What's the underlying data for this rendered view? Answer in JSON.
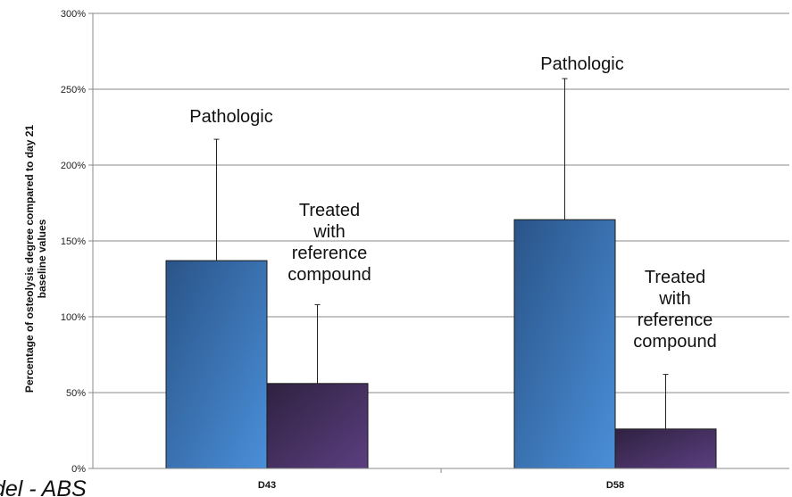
{
  "chart_data": {
    "type": "bar",
    "categories": [
      "D43",
      "D58"
    ],
    "series": [
      {
        "values": [
          137,
          164
        ],
        "errors": [
          80,
          93
        ]
      },
      {
        "values": [
          56,
          26
        ],
        "errors": [
          52,
          36
        ]
      }
    ],
    "ylabel": "Percentage of osteolysis degree compared to day 21 baseline values",
    "ylim": [
      0,
      300
    ],
    "yticks": [
      0,
      50,
      100,
      150,
      200,
      250,
      300
    ],
    "tick_suffix": "%",
    "grid": true,
    "annotations": [
      {
        "lines": [
          "Pathologic"
        ]
      },
      {
        "lines": [
          "Treated",
          "with",
          "reference",
          "compound"
        ]
      },
      {
        "lines": [
          "Pathologic"
        ]
      },
      {
        "lines": [
          "Treated",
          "with",
          "reference",
          "compound"
        ]
      }
    ],
    "colors": {
      "series1_dark": "#2a5488",
      "series1_light": "#4a8fd9",
      "series2_dark": "#2f2140",
      "series2_light": "#5b3f80",
      "grid": "#888888",
      "axis": "#888888"
    }
  },
  "corner_text": "del - ABS"
}
